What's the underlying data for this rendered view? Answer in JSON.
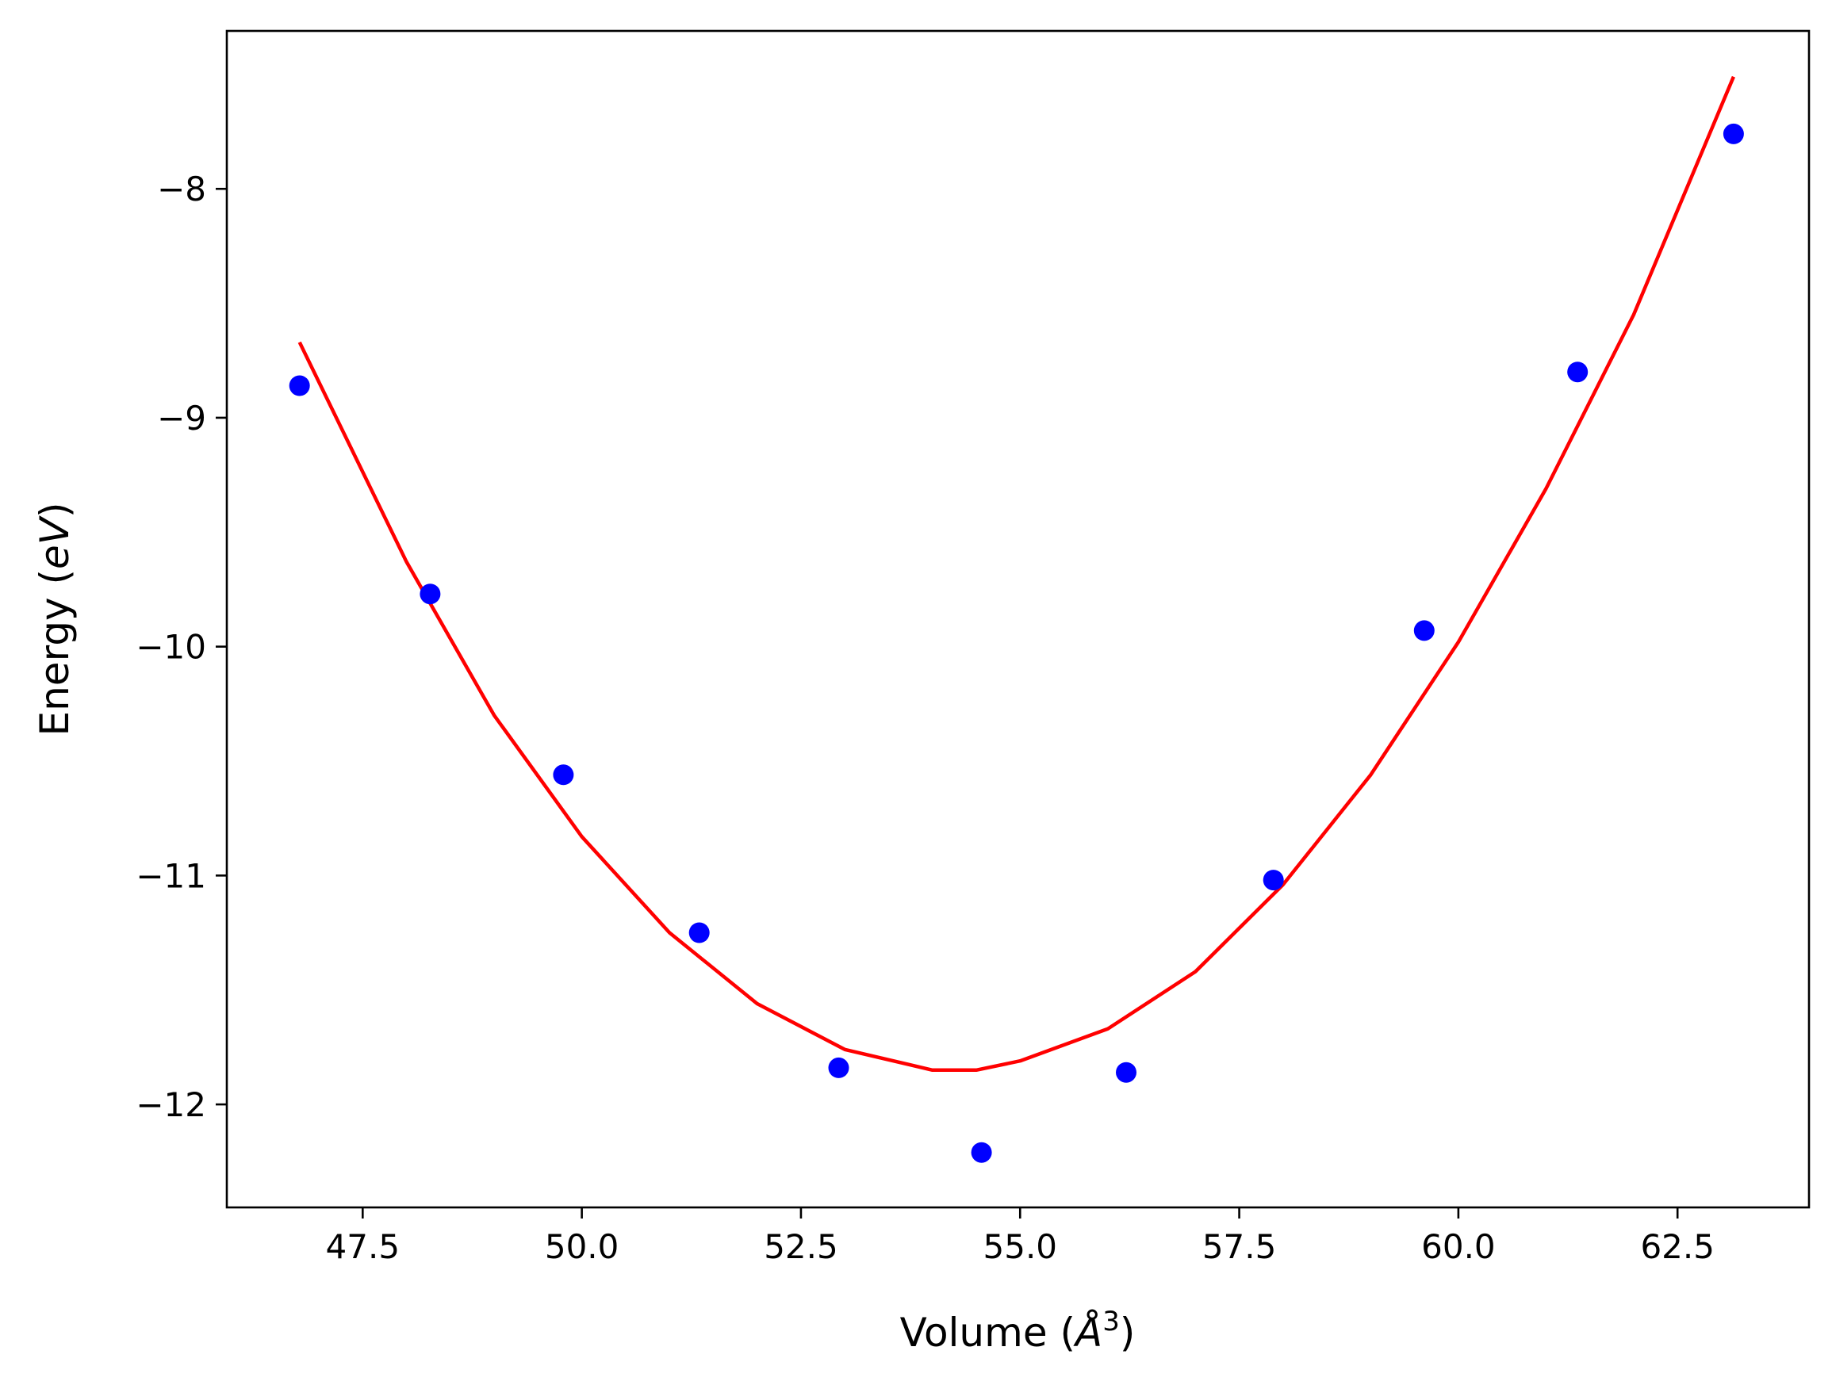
{
  "chart_data": {
    "type": "scatter",
    "xlabel": {
      "prefix": "Volume (",
      "symbol": "Å",
      "superscript": "3",
      "suffix": ")"
    },
    "ylabel": {
      "prefix": "Energy (",
      "symbol": "eV",
      "suffix": ")"
    },
    "xlim": [
      45.95,
      64.0
    ],
    "ylim": [
      -12.45,
      -7.31
    ],
    "xticks": [
      47.5,
      50.0,
      52.5,
      55.0,
      57.5,
      60.0,
      62.5
    ],
    "xtick_labels": [
      "47.5",
      "50.0",
      "52.5",
      "55.0",
      "57.5",
      "60.0",
      "62.5"
    ],
    "yticks": [
      -8,
      -9,
      -10,
      -11,
      -12
    ],
    "ytick_labels": [
      "−8",
      "−9",
      "−10",
      "−11",
      "−12"
    ],
    "grid": false,
    "series": [
      {
        "kind": "scatter",
        "color": "#0000ff",
        "points": [
          {
            "x": 46.78,
            "y": -8.86
          },
          {
            "x": 48.27,
            "y": -9.77
          },
          {
            "x": 49.79,
            "y": -10.56
          },
          {
            "x": 51.34,
            "y": -11.25
          },
          {
            "x": 52.93,
            "y": -11.84
          },
          {
            "x": 54.56,
            "y": -12.21
          },
          {
            "x": 56.21,
            "y": -11.86
          },
          {
            "x": 57.89,
            "y": -11.02
          },
          {
            "x": 59.61,
            "y": -9.93
          },
          {
            "x": 61.36,
            "y": -8.8
          },
          {
            "x": 63.14,
            "y": -7.76
          }
        ]
      },
      {
        "kind": "line",
        "color": "#ff0000",
        "points": [
          {
            "x": 46.78,
            "y": -8.67
          },
          {
            "x": 48.0,
            "y": -9.63
          },
          {
            "x": 49.0,
            "y": -10.3
          },
          {
            "x": 50.0,
            "y": -10.83
          },
          {
            "x": 51.0,
            "y": -11.25
          },
          {
            "x": 52.0,
            "y": -11.56
          },
          {
            "x": 53.0,
            "y": -11.76
          },
          {
            "x": 54.0,
            "y": -11.85
          },
          {
            "x": 54.5,
            "y": -11.85
          },
          {
            "x": 55.0,
            "y": -11.81
          },
          {
            "x": 56.0,
            "y": -11.67
          },
          {
            "x": 57.0,
            "y": -11.42
          },
          {
            "x": 58.0,
            "y": -11.04
          },
          {
            "x": 59.0,
            "y": -10.56
          },
          {
            "x": 60.0,
            "y": -9.98
          },
          {
            "x": 61.0,
            "y": -9.31
          },
          {
            "x": 62.0,
            "y": -8.55
          },
          {
            "x": 63.14,
            "y": -7.51
          }
        ]
      }
    ]
  }
}
